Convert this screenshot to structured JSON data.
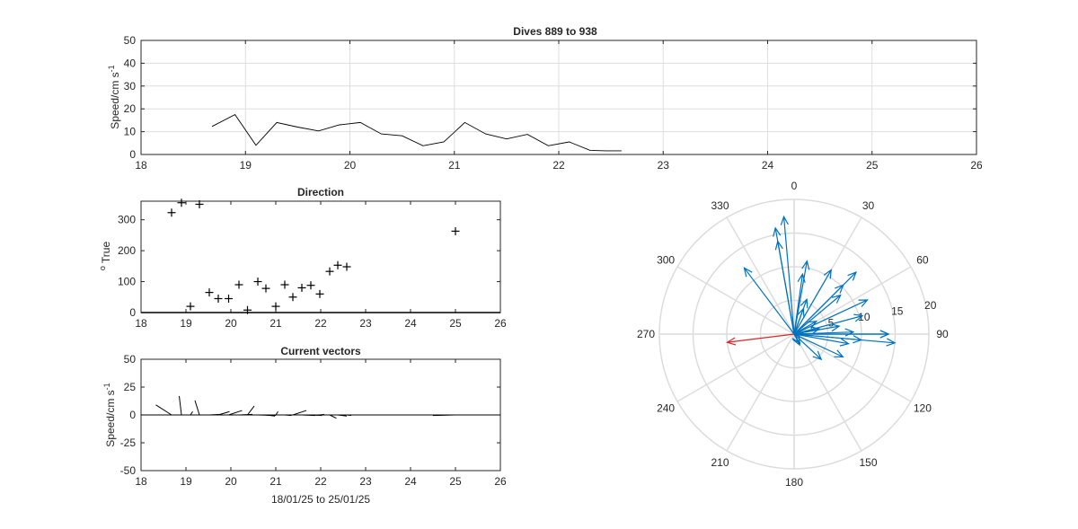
{
  "chart_data": [
    {
      "id": "speed",
      "type": "line",
      "title": "Dives 889 to 938",
      "ylabel": "Speed/cm s",
      "ylabel_sup": "-1",
      "xlim": [
        18,
        26
      ],
      "ylim": [
        0,
        50
      ],
      "xticks": [
        18,
        19,
        20,
        21,
        22,
        23,
        24,
        25,
        26
      ],
      "yticks": [
        0,
        10,
        20,
        30,
        40,
        50
      ],
      "grid": true,
      "colors": {
        "line": "#000000",
        "grid": "#dedede"
      },
      "x": [
        18.68,
        18.9,
        19.1,
        19.3,
        19.5,
        19.7,
        19.9,
        20.1,
        20.3,
        20.5,
        20.7,
        20.9,
        21.1,
        21.3,
        21.5,
        21.7,
        21.9,
        22.1,
        22.3,
        22.45,
        22.6
      ],
      "y": [
        12.3,
        17.5,
        4,
        14,
        12,
        10.3,
        13,
        14,
        9,
        8.2,
        3.8,
        5.5,
        14,
        9,
        6.8,
        8.8,
        3.8,
        5.5,
        1.8,
        1.6,
        1.6
      ]
    },
    {
      "id": "direction",
      "type": "scatter",
      "title": "Direction",
      "ylabel": "True",
      "ylabel_prefix": "o",
      "xlim": [
        18,
        26
      ],
      "ylim": [
        0,
        360
      ],
      "xticks": [
        18,
        19,
        20,
        21,
        22,
        23,
        24,
        25,
        26
      ],
      "yticks": [
        0,
        100,
        200,
        300
      ],
      "grid": false,
      "marker": "plus",
      "colors": {
        "marker": "#000000"
      },
      "x": [
        18.68,
        18.9,
        19.1,
        19.3,
        19.52,
        19.72,
        19.95,
        20.18,
        20.37,
        20.6,
        20.78,
        21.0,
        21.2,
        21.38,
        21.58,
        21.78,
        21.98,
        22.2,
        22.38,
        22.58,
        25.0
      ],
      "y": [
        323,
        355,
        20,
        350,
        65,
        45,
        45,
        90,
        8,
        100,
        78,
        20,
        90,
        50,
        80,
        88,
        60,
        133,
        153,
        148,
        263
      ]
    },
    {
      "id": "vectors",
      "type": "line",
      "title": "Current vectors",
      "ylabel": "Speed/cm s",
      "ylabel_sup": "-1",
      "xlabel": "18/01/25 to 25/01/25",
      "xlim": [
        18,
        26
      ],
      "ylim": [
        -50,
        50
      ],
      "xticks": [
        18,
        19,
        20,
        21,
        22,
        23,
        24,
        25,
        26
      ],
      "yticks": [
        -50,
        -25,
        0,
        25,
        50
      ],
      "grid": false,
      "colors": {
        "line": "#000000"
      },
      "segments": [
        {
          "x0": 18.68,
          "dx": -0.35,
          "dy": 9
        },
        {
          "x0": 18.9,
          "dx": -0.05,
          "dy": 17
        },
        {
          "x0": 19.1,
          "dx": 0.05,
          "dy": 3
        },
        {
          "x0": 19.3,
          "dx": -0.1,
          "dy": 13
        },
        {
          "x0": 19.52,
          "dx": 0.25,
          "dy": 0.5
        },
        {
          "x0": 19.72,
          "dx": 0.25,
          "dy": 3
        },
        {
          "x0": 19.95,
          "dx": 0.3,
          "dy": 4
        },
        {
          "x0": 20.18,
          "dx": 0.3,
          "dy": 0.5
        },
        {
          "x0": 20.37,
          "dx": 0.15,
          "dy": 8
        },
        {
          "x0": 20.6,
          "dx": 0.4,
          "dy": -0.5
        },
        {
          "x0": 20.78,
          "dx": 0.2,
          "dy": -1
        },
        {
          "x0": 21.0,
          "dx": 0.05,
          "dy": 3
        },
        {
          "x0": 21.2,
          "dx": 0.15,
          "dy": -0.5
        },
        {
          "x0": 21.38,
          "dx": 0.3,
          "dy": 4
        },
        {
          "x0": 21.58,
          "dx": 0.3,
          "dy": -0.5
        },
        {
          "x0": 21.78,
          "dx": 0.25,
          "dy": -0.5
        },
        {
          "x0": 21.98,
          "dx": 0.1,
          "dy": 0.5
        },
        {
          "x0": 22.2,
          "dx": 0.15,
          "dy": -3
        },
        {
          "x0": 22.38,
          "dx": 0.2,
          "dy": -1
        },
        {
          "x0": 22.58,
          "dx": 0.1,
          "dy": -0.5
        },
        {
          "x0": 25.0,
          "dx": -0.5,
          "dy": -0.5
        }
      ]
    },
    {
      "id": "polar",
      "type": "polar",
      "theta_direction": "clockwise",
      "theta_zero": "top",
      "theta_ticks": [
        0,
        30,
        60,
        90,
        120,
        150,
        180,
        210,
        240,
        270,
        300,
        330
      ],
      "r_ticks": [
        5,
        10,
        15,
        20
      ],
      "rlim": [
        0,
        20
      ],
      "grid": true,
      "colors": {
        "vectors": "#0072bd",
        "highlight": "#d62728",
        "grid": "#dcdcdc"
      },
      "vectors": [
        {
          "theta": 323,
          "r": 12.3
        },
        {
          "theta": 355,
          "r": 17.5
        },
        {
          "theta": 20,
          "r": 4
        },
        {
          "theta": 350,
          "r": 14
        },
        {
          "theta": 65,
          "r": 12
        },
        {
          "theta": 45,
          "r": 10.3
        },
        {
          "theta": 45,
          "r": 13
        },
        {
          "theta": 90,
          "r": 14
        },
        {
          "theta": 8,
          "r": 9
        },
        {
          "theta": 100,
          "r": 8.2
        },
        {
          "theta": 78,
          "r": 3.8
        },
        {
          "theta": 20,
          "r": 5.5
        },
        {
          "theta": 90,
          "r": 14
        },
        {
          "theta": 50,
          "r": 9
        },
        {
          "theta": 80,
          "r": 6.8
        },
        {
          "theta": 88,
          "r": 8.8
        },
        {
          "theta": 60,
          "r": 3.8
        },
        {
          "theta": 133,
          "r": 5.5
        },
        {
          "theta": 153,
          "r": 1.8
        },
        {
          "theta": 148,
          "r": 1.6
        },
        {
          "theta": 95,
          "r": 15
        },
        {
          "theta": 30,
          "r": 11
        },
        {
          "theta": 350,
          "r": 16
        },
        {
          "theta": 10,
          "r": 11
        },
        {
          "theta": 115,
          "r": 8
        },
        {
          "theta": 95,
          "r": 10
        },
        {
          "theta": 75,
          "r": 10.5
        }
      ],
      "highlight_vector": {
        "theta": 263,
        "r": 10
      }
    }
  ]
}
